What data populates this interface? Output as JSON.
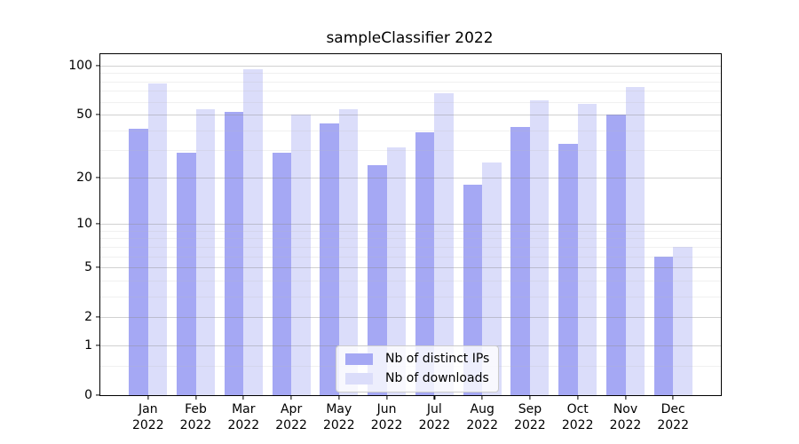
{
  "figure": {
    "background": "#ffffff"
  },
  "chart_data": {
    "type": "bar",
    "title": "sampleClassifier 2022",
    "categories": [
      "Jan",
      "Feb",
      "Mar",
      "Apr",
      "May",
      "Jun",
      "Jul",
      "Aug",
      "Sep",
      "Oct",
      "Nov",
      "Dec"
    ],
    "category_year": "2022",
    "series": [
      {
        "name": "Nb of distinct IPs",
        "color": "#a5a8f4",
        "values": [
          41,
          29,
          52,
          29,
          44,
          24,
          39,
          18,
          42,
          33,
          50,
          6
        ]
      },
      {
        "name": "Nb of downloads",
        "color": "#dbddfa",
        "values": [
          78,
          54,
          95,
          50,
          54,
          31,
          68,
          25,
          61,
          58,
          74,
          7
        ]
      }
    ],
    "y_axis": {
      "scale": "log1p",
      "major_ticks": [
        0,
        1,
        2,
        5,
        10,
        20,
        50,
        100
      ],
      "minor_ticks": [
        0.5,
        3,
        4,
        6,
        7,
        8,
        9,
        30,
        40,
        60,
        70,
        80,
        90
      ],
      "ylim": [
        0,
        100
      ]
    },
    "xlabel": "",
    "ylabel": "",
    "grid": "on",
    "legend": {
      "position": "lower center"
    }
  }
}
